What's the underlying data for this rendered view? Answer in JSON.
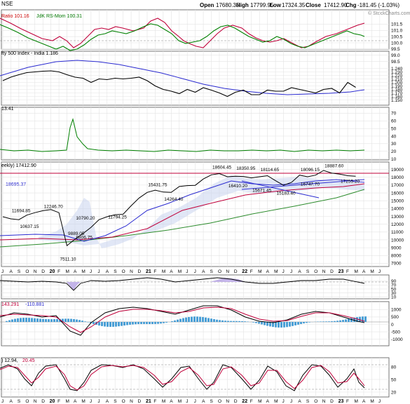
{
  "header": {
    "exchange": "NSE",
    "open_label": "Open",
    "open": "17680.35",
    "high_label": "High",
    "high": "17799.95",
    "low_label": "Low",
    "low": "17324.35",
    "close_label": "Close",
    "close": "17412.90",
    "chg_label": "Chg",
    "chg": "-181.45 (-1.03%)",
    "watermark": "© StockCharts.com"
  },
  "panels": {
    "rs": {
      "legend_a": "Ratio 101.16",
      "legend_b": "JdK RS-Mom 100.31",
      "ticks": [
        "101.5",
        "101.0",
        "100.5",
        "100.0",
        "99.5",
        "99.0",
        "98.5"
      ]
    },
    "ratio": {
      "legend": "fty 500 Index - India 1.186",
      "ticks": [
        "1.240",
        "1.230",
        "1.220",
        "1.210",
        "1.200",
        "1.190",
        "1.180",
        "1.170",
        "1.160",
        "1.150"
      ]
    },
    "adx": {
      "legend": "13.41",
      "ticks": [
        "70",
        "60",
        "50",
        "40",
        "30",
        "20",
        "10"
      ]
    },
    "price": {
      "legend": "eekly) 17412.90",
      "ma_legend": "18695.37",
      "ticks": [
        "19000",
        "18000",
        "17000",
        "16000",
        "15000",
        "14000",
        "13000",
        "12000",
        "11000",
        "10000",
        "9000",
        "8000",
        "7000"
      ]
    },
    "cmf": {
      "ticks": [
        "90",
        "70",
        "50",
        "30",
        "10"
      ]
    },
    "macd": {
      "legend_a": "143.291",
      "legend_b": "-110.881",
      "ticks": [
        "1000",
        "500",
        "0",
        "-500",
        "-1000"
      ]
    },
    "stoch": {
      "legend_a": ") 12.94,",
      "legend_b": "20.45",
      "ticks": [
        "80",
        "50",
        "20"
      ]
    }
  },
  "months_top": [
    "J",
    "A",
    "S",
    "O",
    "N",
    "D",
    "20",
    "F",
    "M",
    "A",
    "M",
    "J",
    "J",
    "A",
    "S",
    "O",
    "N",
    "D",
    "21",
    "F",
    "M",
    "A",
    "M",
    "J",
    "J",
    "A",
    "S",
    "O",
    "N",
    "D",
    "22",
    "F",
    "M",
    "A",
    "M",
    "J",
    "J",
    "A",
    "S",
    "O",
    "N",
    "D",
    "23",
    "F",
    "M",
    "A",
    "M",
    "J"
  ],
  "chart_data": {
    "type": "line",
    "title": "",
    "y_scale": "log",
    "annotations": [
      {
        "label": "11694.85",
        "x": "2019-09",
        "y": 11694.85
      },
      {
        "label": "10637.15",
        "x": "2019-10",
        "y": 10637.15
      },
      {
        "label": "12246.70",
        "x": "2020-01",
        "y": 12246.7
      },
      {
        "label": "9889.05",
        "x": "2020-04",
        "y": 9889.05
      },
      {
        "label": "8806.75",
        "x": "2020-05",
        "y": 8806.75
      },
      {
        "label": "7511.10",
        "x": "2020-03",
        "y": 7511.1
      },
      {
        "label": "10790.20",
        "x": "2020-05",
        "y": 10790.2
      },
      {
        "label": "11794.25",
        "x": "2020-09",
        "y": 11794.25
      },
      {
        "label": "15431.75",
        "x": "2021-02",
        "y": 15431.75
      },
      {
        "label": "14264.40",
        "x": "2021-04",
        "y": 14264.4
      },
      {
        "label": "18604.45",
        "x": "2021-10",
        "y": 18604.45
      },
      {
        "label": "16410.20",
        "x": "2021-12",
        "y": 16410.2
      },
      {
        "label": "18350.95",
        "x": "2022-01",
        "y": 18350.95
      },
      {
        "label": "15671.45",
        "x": "2022-03",
        "y": 15671.45
      },
      {
        "label": "18114.65",
        "x": "2022-04",
        "y": 18114.65
      },
      {
        "label": "15183.40",
        "x": "2022-06",
        "y": 15183.4
      },
      {
        "label": "18096.15",
        "x": "2022-09",
        "y": 18096.15
      },
      {
        "label": "16747.70",
        "x": "2022-09",
        "y": 16747.7
      },
      {
        "label": "18887.60",
        "x": "2022-12",
        "y": 18887.6
      },
      {
        "label": "17255.20",
        "x": "2023-02",
        "y": 17255.2
      }
    ],
    "price_series": {
      "x_start": "2019-07",
      "step": "month",
      "values": [
        11300,
        11050,
        10950,
        11500,
        11800,
        12050,
        12200,
        11800,
        8300,
        8900,
        9450,
        10100,
        10950,
        11300,
        11550,
        11600,
        12700,
        13800,
        14650,
        15000,
        14700,
        14650,
        15600,
        15750,
        15800,
        16900,
        17650,
        17900,
        17300,
        17400,
        17350,
        17100,
        17300,
        17500,
        16600,
        15800,
        16300,
        17600,
        17300,
        17600,
        18500,
        18000,
        17800,
        17500,
        17400
      ]
    },
    "ratio_series": {
      "x_start": "2019-07",
      "step": "month",
      "values": [
        1.205,
        1.215,
        1.222,
        1.228,
        1.23,
        1.232,
        1.233,
        1.23,
        1.222,
        1.215,
        1.212,
        1.2,
        1.21,
        1.208,
        1.212,
        1.21,
        1.212,
        1.215,
        1.205,
        1.19,
        1.18,
        1.175,
        1.168,
        1.18,
        1.172,
        1.185,
        1.178,
        1.17,
        1.16,
        1.172,
        1.178,
        1.165,
        1.165,
        1.178,
        1.175,
        1.175,
        1.185,
        1.18,
        1.175,
        1.17,
        1.18,
        1.183,
        1.17,
        1.2,
        1.186
      ]
    }
  }
}
